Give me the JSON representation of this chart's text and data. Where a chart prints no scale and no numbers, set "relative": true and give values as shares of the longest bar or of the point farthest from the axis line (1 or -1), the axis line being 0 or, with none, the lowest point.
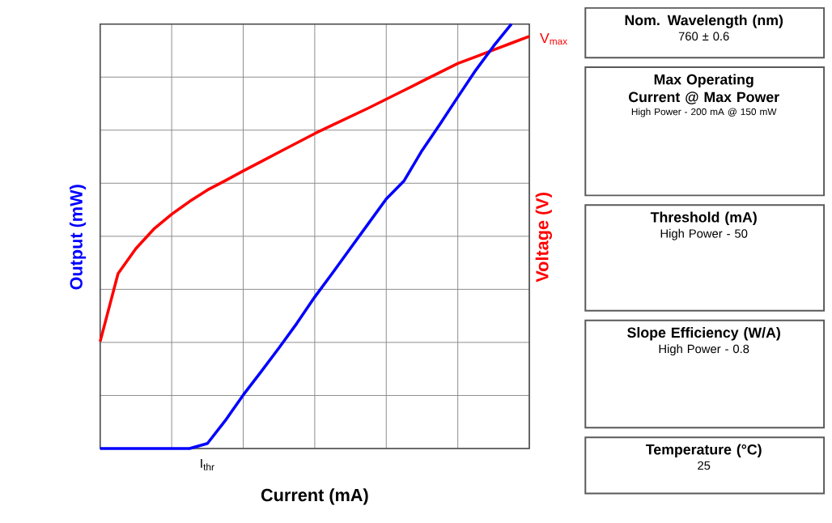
{
  "chart_data": [
    {
      "type": "line",
      "relative": true,
      "xlabel": "Current (mA)",
      "ylabel": "Output (mW)",
      "y2label": "Voltage (V)",
      "grid": true,
      "marker": "none",
      "line_style": "solid",
      "categories": [
        null,
        null,
        null,
        null,
        null,
        null,
        null,
        null,
        null,
        null,
        null,
        null,
        null,
        null,
        null,
        null,
        null,
        null,
        null,
        null,
        null,
        null,
        null,
        null,
        null
      ],
      "series": [
        {
          "color": "#ff0000",
          "values": [
            0.252,
            0.412,
            0.471,
            0.517,
            0.552,
            0.582,
            0.609,
            0.631,
            0.654,
            0.676,
            0.698,
            0.72,
            0.742,
            0.762,
            0.782,
            0.802,
            0.823,
            0.844,
            0.865,
            0.886,
            0.907,
            0.923,
            0.939,
            0.955,
            0.971
          ]
        },
        {
          "color": "#0000ff",
          "values": [
            0,
            0,
            0,
            0,
            0,
            0,
            0.012,
            0.066,
            0.126,
            0.181,
            0.237,
            0.295,
            0.357,
            0.414,
            0.472,
            0.53,
            0.588,
            0.631,
            0.702,
            0.764,
            0.828,
            0.891,
            0.948,
            1,
            null
          ]
        }
      ],
      "annotations": [
        "I$_{thr}$",
        "V$_{max}$"
      ]
    },
    {
      "type": "other",
      "annotations": [
        "Nom. Wavelength (nm)",
        "760 ± 0.6",
        "Max Operating Current @ Max Power",
        "High Power - 200 mA @ 150 mW",
        "Threshold (mA)",
        "High Power - 50",
        "Slope Efficiency (W/A)",
        "High Power - 0.8",
        "Temperature (°C)",
        "25"
      ]
    }
  ]
}
